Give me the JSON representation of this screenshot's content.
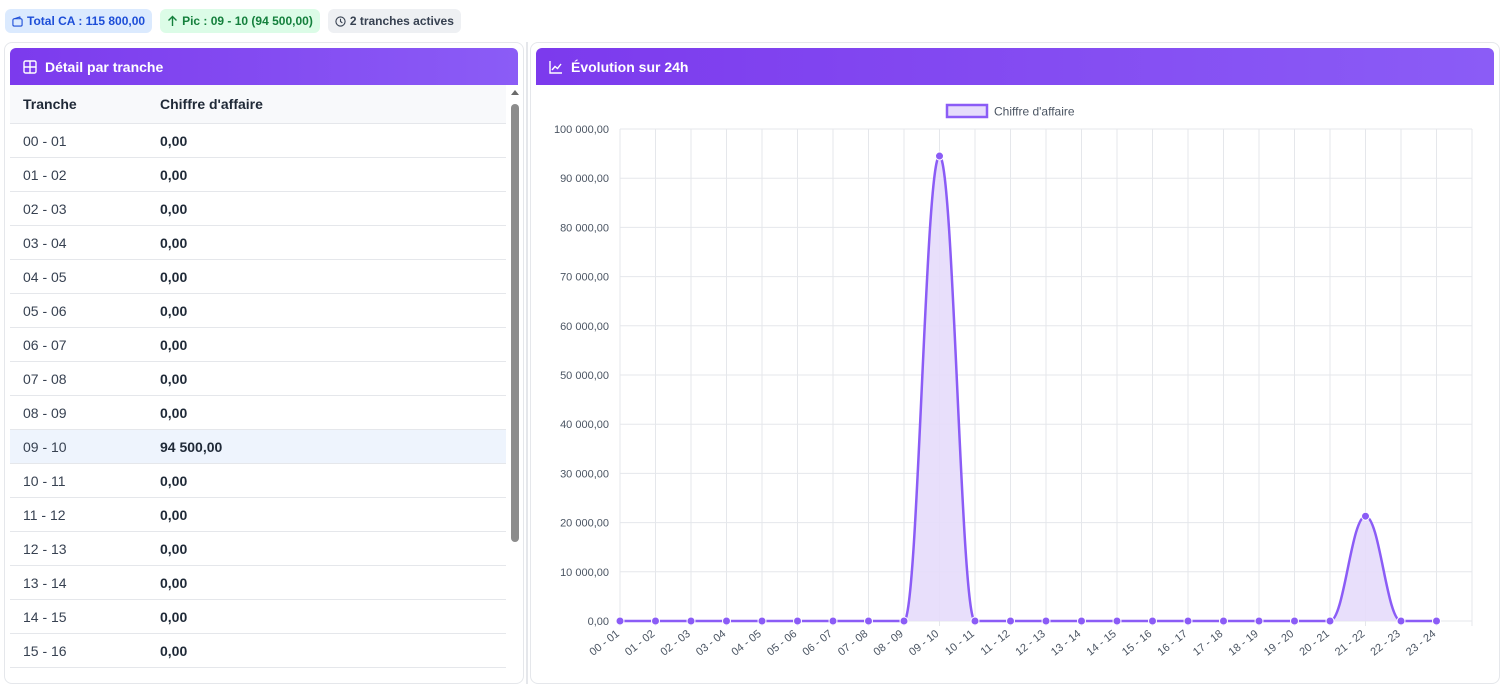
{
  "badges": {
    "total": "Total CA : 115 800,00",
    "peak": "Pic : 09 - 10 (94 500,00)",
    "active": "2 tranches actives"
  },
  "table_panel": {
    "title": "Détail par tranche",
    "headers": [
      "Tranche",
      "Chiffre d'affaire"
    ],
    "rows": [
      {
        "tranche": "00 - 01",
        "value": "0,00"
      },
      {
        "tranche": "01 - 02",
        "value": "0,00"
      },
      {
        "tranche": "02 - 03",
        "value": "0,00"
      },
      {
        "tranche": "03 - 04",
        "value": "0,00"
      },
      {
        "tranche": "04 - 05",
        "value": "0,00"
      },
      {
        "tranche": "05 - 06",
        "value": "0,00"
      },
      {
        "tranche": "06 - 07",
        "value": "0,00"
      },
      {
        "tranche": "07 - 08",
        "value": "0,00"
      },
      {
        "tranche": "08 - 09",
        "value": "0,00"
      },
      {
        "tranche": "09 - 10",
        "value": "94 500,00"
      },
      {
        "tranche": "10 - 11",
        "value": "0,00"
      },
      {
        "tranche": "11 - 12",
        "value": "0,00"
      },
      {
        "tranche": "12 - 13",
        "value": "0,00"
      },
      {
        "tranche": "13 - 14",
        "value": "0,00"
      },
      {
        "tranche": "14 - 15",
        "value": "0,00"
      },
      {
        "tranche": "15 - 16",
        "value": "0,00"
      }
    ],
    "highlighted_row": "09 - 10"
  },
  "chart_panel": {
    "title": "Évolution sur 24h"
  },
  "colors": {
    "accent": "#7c3aed",
    "line": "#8b5cf6",
    "fill": "#e6dcfb"
  },
  "chart_data": {
    "type": "area",
    "categories": [
      "00 - 01",
      "01 - 02",
      "02 - 03",
      "03 - 04",
      "04 - 05",
      "05 - 06",
      "06 - 07",
      "07 - 08",
      "08 - 09",
      "09 - 10",
      "10 - 11",
      "11 - 12",
      "12 - 13",
      "13 - 14",
      "14 - 15",
      "15 - 16",
      "16 - 17",
      "17 - 18",
      "18 - 19",
      "19 - 20",
      "20 - 21",
      "21 - 22",
      "22 - 23",
      "23 - 24"
    ],
    "series": [
      {
        "name": "Chiffre d'affaire",
        "values": [
          0,
          0,
          0,
          0,
          0,
          0,
          0,
          0,
          0,
          94500,
          0,
          0,
          0,
          0,
          0,
          0,
          0,
          0,
          0,
          0,
          0,
          21300,
          0,
          0
        ]
      }
    ],
    "ylim": [
      0,
      100000
    ],
    "yticks": [
      0,
      10000,
      20000,
      30000,
      40000,
      50000,
      60000,
      70000,
      80000,
      90000,
      100000
    ],
    "ytick_labels": [
      "0,00",
      "10 000,00",
      "20 000,00",
      "30 000,00",
      "40 000,00",
      "50 000,00",
      "60 000,00",
      "70 000,00",
      "80 000,00",
      "90 000,00",
      "100 000,00"
    ],
    "legend": "top-center",
    "grid": true,
    "smooth": true
  }
}
